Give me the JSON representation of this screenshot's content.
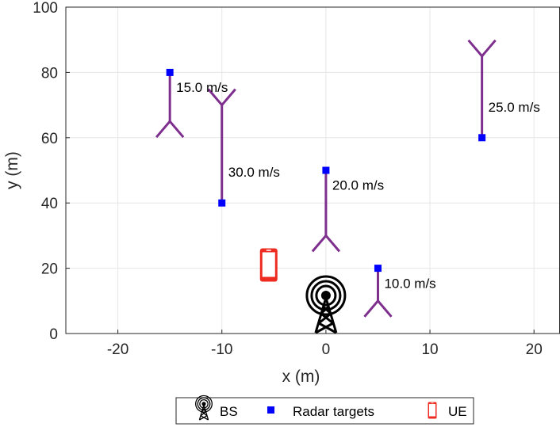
{
  "chart_data": {
    "type": "scatter",
    "xlabel": "x (m)",
    "ylabel": "y (m)",
    "xlim": [
      -25,
      22.5
    ],
    "ylim": [
      0,
      100
    ],
    "xticks": [
      -20,
      -10,
      0,
      10,
      20
    ],
    "yticks": [
      0,
      20,
      40,
      60,
      80,
      100
    ],
    "grid": true,
    "legend_position": "bottom-center",
    "colors": {
      "targets": "#0000ff",
      "arrows": "#7e2f8e",
      "ue": "#ee2b20",
      "bs": "#000000"
    },
    "series": [
      {
        "name": "Radar targets",
        "marker": "square",
        "points": [
          {
            "x": -15,
            "y": 80,
            "speed_label": "15.0 m/s",
            "direction": "down",
            "speed": 15
          },
          {
            "x": -10,
            "y": 40,
            "speed_label": "30.0 m/s",
            "direction": "up",
            "speed": 30
          },
          {
            "x": 0,
            "y": 50,
            "speed_label": "20.0 m/s",
            "direction": "down",
            "speed": 20
          },
          {
            "x": 5,
            "y": 20,
            "speed_label": "10.0 m/s",
            "direction": "down",
            "speed": 10
          },
          {
            "x": 15,
            "y": 60,
            "speed_label": "25.0 m/s",
            "direction": "up",
            "speed": 25
          }
        ]
      },
      {
        "name": "BS",
        "icon": "tower-icon",
        "points": [
          {
            "x": 0,
            "y": 0
          }
        ]
      },
      {
        "name": "UE",
        "icon": "phone-icon",
        "points": [
          {
            "x": -5.5,
            "y": 21
          }
        ]
      }
    ],
    "legend": [
      "BS",
      "Radar targets",
      "UE"
    ]
  }
}
